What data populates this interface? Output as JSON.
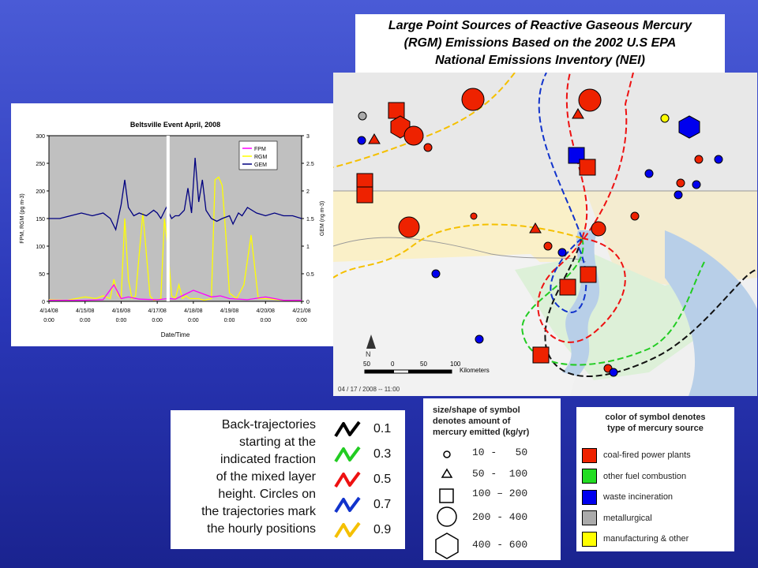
{
  "title": "Large Point Sources of Reactive Gaseous Mercury (RGM) Emissions Based on the 2002 U.S EPA National Emissions Inventory (NEI)",
  "title_lines": [
    "Large Point Sources of Reactive Gaseous Mercury",
    "(RGM) Emissions Based on the 2002 U.S EPA",
    "National Emissions Inventory (NEI)"
  ],
  "chart_data": {
    "type": "line",
    "title": "Beltsville Event April, 2008",
    "xlabel": "Date/Time",
    "ylabel": "FPM, RGM (pg m-3)",
    "y2label": "GEM (ng m-3)",
    "ylim": [
      0,
      300
    ],
    "y2lim": [
      0,
      3
    ],
    "yticks": [
      "0",
      "50",
      "100",
      "150",
      "200",
      "250",
      "300"
    ],
    "y2ticks": [
      "0",
      "0.5",
      "1",
      "1.5",
      "2",
      "2.5",
      "3"
    ],
    "x_tick_dates": [
      "4/14/08",
      "4/15/08",
      "4/16/08",
      "4/17/08",
      "4/18/08",
      "4/19/08",
      "4/20/08",
      "4/21/08"
    ],
    "x_tick_times": [
      "0:00",
      "0:00",
      "0:00",
      "0:00",
      "0:00",
      "0:00",
      "0:00",
      "0:00"
    ],
    "xlim_days": [
      0,
      7
    ],
    "legend": [
      "FPM",
      "RGM",
      "GEM"
    ],
    "legend_position": "top-right",
    "colors": {
      "FPM": "#ff00ff",
      "RGM": "#ffff00",
      "GEM": "#000080"
    },
    "series": [
      {
        "name": "GEM",
        "axis": "right",
        "x": [
          0,
          0.3,
          0.6,
          0.9,
          1.2,
          1.5,
          1.7,
          1.85,
          2.0,
          2.1,
          2.2,
          2.35,
          2.5,
          2.7,
          2.9,
          3.0,
          3.1,
          3.25,
          3.4,
          3.5,
          3.6,
          3.75,
          3.85,
          3.95,
          4.05,
          4.15,
          4.25,
          4.35,
          4.5,
          4.65,
          4.8,
          5.0,
          5.1,
          5.25,
          5.35,
          5.5,
          5.75,
          6.0,
          6.25,
          6.5,
          6.75,
          7.0
        ],
        "y": [
          1.5,
          1.5,
          1.55,
          1.6,
          1.55,
          1.6,
          1.5,
          1.3,
          1.75,
          2.2,
          1.7,
          1.55,
          1.6,
          1.55,
          1.65,
          1.6,
          1.5,
          1.7,
          1.5,
          1.55,
          1.55,
          1.65,
          2.05,
          1.6,
          2.6,
          1.8,
          2.2,
          1.65,
          1.5,
          1.45,
          1.5,
          1.55,
          1.4,
          1.6,
          1.55,
          1.7,
          1.6,
          1.55,
          1.6,
          1.55,
          1.55,
          1.5
        ]
      },
      {
        "name": "RGM",
        "axis": "left",
        "x": [
          0,
          0.5,
          1.0,
          1.3,
          1.5,
          1.7,
          1.8,
          1.9,
          2.0,
          2.1,
          2.2,
          2.3,
          2.4,
          2.6,
          2.8,
          2.9,
          3.0,
          3.1,
          3.2,
          3.3,
          3.4,
          3.5,
          3.6,
          3.7,
          3.8,
          3.9,
          4.0,
          4.15,
          4.3,
          4.5,
          4.6,
          4.7,
          4.8,
          4.9,
          5.0,
          5.2,
          5.4,
          5.6,
          5.8,
          6.0,
          6.5,
          7.0
        ],
        "y": [
          3,
          2,
          8,
          5,
          10,
          5,
          40,
          12,
          5,
          150,
          40,
          5,
          10,
          160,
          10,
          2,
          3,
          5,
          150,
          90,
          10,
          5,
          30,
          5,
          10,
          5,
          5,
          5,
          2,
          5,
          220,
          225,
          210,
          120,
          15,
          5,
          30,
          120,
          5,
          5,
          2,
          2
        ]
      },
      {
        "name": "FPM",
        "axis": "left",
        "x": [
          0,
          0.5,
          1.0,
          1.5,
          1.8,
          2.0,
          2.2,
          2.5,
          3.0,
          3.3,
          3.5,
          4.0,
          4.5,
          4.75,
          5.0,
          5.5,
          6.0,
          6.5,
          7.0
        ],
        "y": [
          2,
          2,
          2,
          3,
          30,
          5,
          8,
          4,
          3,
          5,
          4,
          20,
          8,
          10,
          5,
          3,
          8,
          2,
          2
        ]
      }
    ],
    "marker_x_day": 3.3
  },
  "map": {
    "scale_labels": [
      "50",
      "0",
      "50",
      "100"
    ],
    "scale_unit": "Kilometers",
    "north_label": "N",
    "timestamp": "04 / 17 / 2008 -- 11:00"
  },
  "trajectory_legend": {
    "text_lines": [
      "Back-trajectories",
      "starting at the",
      "indicated fraction",
      "of the mixed layer",
      "height. Circles on",
      "the trajectories mark",
      "the hourly positions"
    ],
    "items": [
      {
        "label": "0.1",
        "color": "#000000"
      },
      {
        "label": "0.3",
        "color": "#22cc22"
      },
      {
        "label": "0.5",
        "color": "#ee1111"
      },
      {
        "label": "0.7",
        "color": "#1133cc"
      },
      {
        "label": "0.9",
        "color": "#f5c000"
      }
    ]
  },
  "size_legend": {
    "header": [
      "size/shape of symbol",
      "denotes amount of",
      "mercury emitted (kg/yr)"
    ],
    "items": [
      {
        "shape": "circle-small",
        "label": "10 -   50"
      },
      {
        "shape": "triangle",
        "label": "50 -  100"
      },
      {
        "shape": "square",
        "label": "100 – 200"
      },
      {
        "shape": "circle-large",
        "label": "200 - 400"
      },
      {
        "shape": "hexagon",
        "label": "400 - 600"
      }
    ]
  },
  "color_legend": {
    "header": [
      "color of symbol denotes",
      "type of mercury source"
    ],
    "items": [
      {
        "color": "#ee2200",
        "label": "coal-fired power plants"
      },
      {
        "color": "#22dd22",
        "label": "other fuel combustion"
      },
      {
        "color": "#0000ee",
        "label": "waste incineration"
      },
      {
        "color": "#aaaaaa",
        "label": "metallurgical"
      },
      {
        "color": "#ffff00",
        "label": "manufacturing & other"
      }
    ]
  }
}
